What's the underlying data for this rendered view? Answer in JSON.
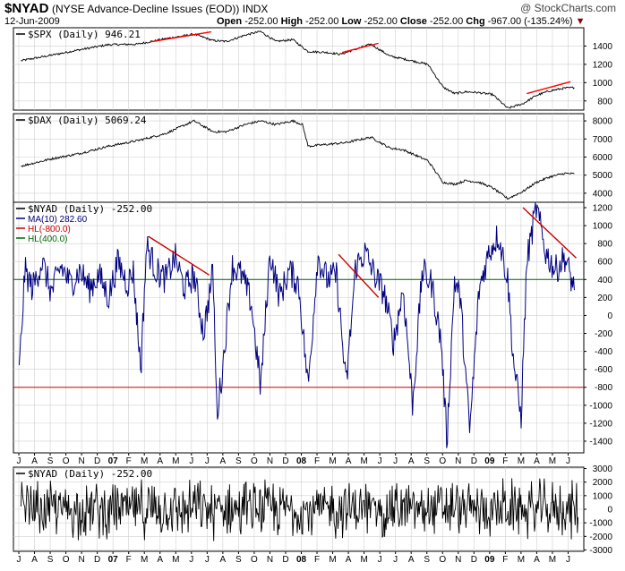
{
  "header": {
    "symbol": "$NYAD",
    "title": "(NYSE Advance-Decline Issues (EOD))  INDX",
    "site": "@ StockCharts.com",
    "date": "12-Jun-2009",
    "open_label": "Open",
    "open": "-252.00",
    "high_label": "High",
    "high": "-252.00",
    "low_label": "Low",
    "low": "-252.00",
    "close_label": "Close",
    "close": "-252.00",
    "chg_label": "Chg",
    "chg": "-967.00 (-135.24%)"
  },
  "chart_data": [
    {
      "type": "line",
      "panel": "spx",
      "legend": "$SPX (Daily) 946.21",
      "yticks": [
        800,
        1000,
        1200,
        1400
      ],
      "ylim": [
        700,
        1600
      ],
      "series": [
        {
          "name": "$SPX",
          "color": "#000000",
          "x": [
            2006.54,
            2006.7,
            2006.85,
            2007.0,
            2007.15,
            2007.3,
            2007.45,
            2007.55,
            2007.62,
            2007.72,
            2007.8,
            2007.88,
            2007.97,
            2008.05,
            2008.15,
            2008.22,
            2008.38,
            2008.48,
            2008.55,
            2008.68,
            2008.76,
            2008.82,
            2008.88,
            2008.95,
            2009.02,
            2009.1,
            2009.18,
            2009.25,
            2009.32,
            2009.4,
            2009.45
          ],
          "values": [
            1240,
            1300,
            1360,
            1415,
            1420,
            1480,
            1530,
            1460,
            1450,
            1520,
            1560,
            1450,
            1470,
            1340,
            1330,
            1310,
            1420,
            1290,
            1260,
            1200,
            950,
            880,
            900,
            890,
            870,
            720,
            770,
            860,
            910,
            940,
            946
          ]
        }
      ],
      "annotations": [
        {
          "type": "trendline",
          "color": "#ff0000",
          "x": [
            2007.22,
            2007.54
          ],
          "y": [
            1445,
            1555
          ]
        },
        {
          "type": "trendline",
          "color": "#ff0000",
          "x": [
            2008.23,
            2008.42
          ],
          "y": [
            1330,
            1430
          ]
        },
        {
          "type": "trendline",
          "color": "#ff0000",
          "x": [
            2009.2,
            2009.43
          ],
          "y": [
            880,
            1010
          ]
        }
      ]
    },
    {
      "type": "line",
      "panel": "dax",
      "legend": "$DAX (Daily) 5069.24",
      "yticks": [
        4000,
        5000,
        6000,
        7000,
        8000
      ],
      "ylim": [
        3500,
        8400
      ],
      "series": [
        {
          "name": "$DAX",
          "color": "#000000",
          "x": [
            2006.54,
            2006.7,
            2006.85,
            2007.0,
            2007.15,
            2007.3,
            2007.45,
            2007.55,
            2007.62,
            2007.72,
            2007.8,
            2007.88,
            2007.97,
            2008.02,
            2008.05,
            2008.15,
            2008.25,
            2008.38,
            2008.48,
            2008.55,
            2008.68,
            2008.76,
            2008.82,
            2008.88,
            2008.95,
            2009.02,
            2009.1,
            2009.18,
            2009.25,
            2009.32,
            2009.4,
            2009.45
          ],
          "values": [
            5500,
            5900,
            6200,
            6600,
            6900,
            7300,
            8000,
            7400,
            7400,
            7800,
            8000,
            7800,
            8000,
            7800,
            6600,
            6700,
            6800,
            7100,
            6500,
            6400,
            5800,
            4600,
            4500,
            4700,
            4600,
            4300,
            3700,
            4100,
            4600,
            4900,
            5100,
            5069
          ]
        }
      ]
    },
    {
      "type": "line",
      "panel": "nyad",
      "legend": "$NYAD (Daily) -252.00",
      "yticks": [
        -1400,
        -1200,
        -1000,
        -800,
        -600,
        -400,
        -200,
        0,
        200,
        400,
        600,
        800,
        1000,
        1200
      ],
      "ylim": [
        -1530,
        1260
      ],
      "hlines": [
        {
          "label": "HL(-800.0)",
          "value": -800,
          "color": "#cc0000"
        },
        {
          "label": "HL(400.0)",
          "value": 400,
          "color": "#006600"
        }
      ],
      "series": [
        {
          "name": "MA(10) 282.60",
          "color": "#000080",
          "x": [
            2006.53,
            2006.56,
            2006.6,
            2006.65,
            2006.7,
            2006.75,
            2006.8,
            2006.85,
            2006.9,
            2006.95,
            2007.0,
            2007.05,
            2007.1,
            2007.13,
            2007.17,
            2007.2,
            2007.25,
            2007.3,
            2007.35,
            2007.4,
            2007.45,
            2007.5,
            2007.55,
            2007.57,
            2007.6,
            2007.65,
            2007.7,
            2007.75,
            2007.8,
            2007.85,
            2007.9,
            2007.95,
            2008.0,
            2008.05,
            2008.1,
            2008.15,
            2008.2,
            2008.25,
            2008.3,
            2008.35,
            2008.4,
            2008.45,
            2008.5,
            2008.55,
            2008.6,
            2008.65,
            2008.7,
            2008.75,
            2008.78,
            2008.82,
            2008.85,
            2008.9,
            2008.95,
            2009.0,
            2009.05,
            2009.1,
            2009.13,
            2009.17,
            2009.2,
            2009.25,
            2009.3,
            2009.35,
            2009.4,
            2009.45
          ],
          "values": [
            -650,
            500,
            300,
            600,
            250,
            550,
            350,
            500,
            300,
            450,
            200,
            600,
            350,
            500,
            -600,
            780,
            500,
            400,
            650,
            300,
            450,
            -200,
            500,
            -1100,
            -600,
            550,
            450,
            150,
            -800,
            700,
            200,
            500,
            350,
            -800,
            650,
            400,
            450,
            -800,
            550,
            700,
            450,
            250,
            -300,
            300,
            -1000,
            500,
            350,
            -300,
            -1400,
            400,
            200,
            -1300,
            300,
            700,
            900,
            400,
            -500,
            -1150,
            600,
            1200,
            700,
            500,
            650,
            282.6
          ]
        }
      ],
      "annotations": [
        {
          "type": "trendline",
          "color": "#cc0000",
          "x": [
            2007.21,
            2007.53
          ],
          "y": [
            880,
            450
          ]
        },
        {
          "type": "trendline",
          "color": "#cc0000",
          "x": [
            2008.21,
            2008.42
          ],
          "y": [
            680,
            200
          ]
        },
        {
          "type": "trendline",
          "color": "#cc0000",
          "x": [
            2009.18,
            2009.46
          ],
          "y": [
            1200,
            640
          ]
        }
      ]
    },
    {
      "type": "line",
      "panel": "nyad-raw",
      "legend": "$NYAD (Daily) -252.00",
      "yticks": [
        -3000,
        -2000,
        -1000,
        0,
        1000,
        2000,
        3000
      ],
      "ylim": [
        -3100,
        3100
      ],
      "series": [
        {
          "name": "$NYAD",
          "color": "#000000",
          "amplitude": 2500
        }
      ]
    }
  ],
  "x_axis": {
    "months": [
      "J",
      "A",
      "S",
      "O",
      "N",
      "D",
      "07",
      "F",
      "M",
      "A",
      "M",
      "J",
      "J",
      "A",
      "S",
      "O",
      "N",
      "D",
      "08",
      "F",
      "M",
      "A",
      "M",
      "J",
      "J",
      "A",
      "S",
      "O",
      "N",
      "D",
      "09",
      "F",
      "M",
      "A",
      "M",
      "J"
    ],
    "year_labels": [
      "07",
      "08",
      "09"
    ]
  },
  "colors": {
    "grid": "#d0d0d0",
    "trend": "#ff0000",
    "ma": "#000080",
    "frame": "#000000"
  }
}
